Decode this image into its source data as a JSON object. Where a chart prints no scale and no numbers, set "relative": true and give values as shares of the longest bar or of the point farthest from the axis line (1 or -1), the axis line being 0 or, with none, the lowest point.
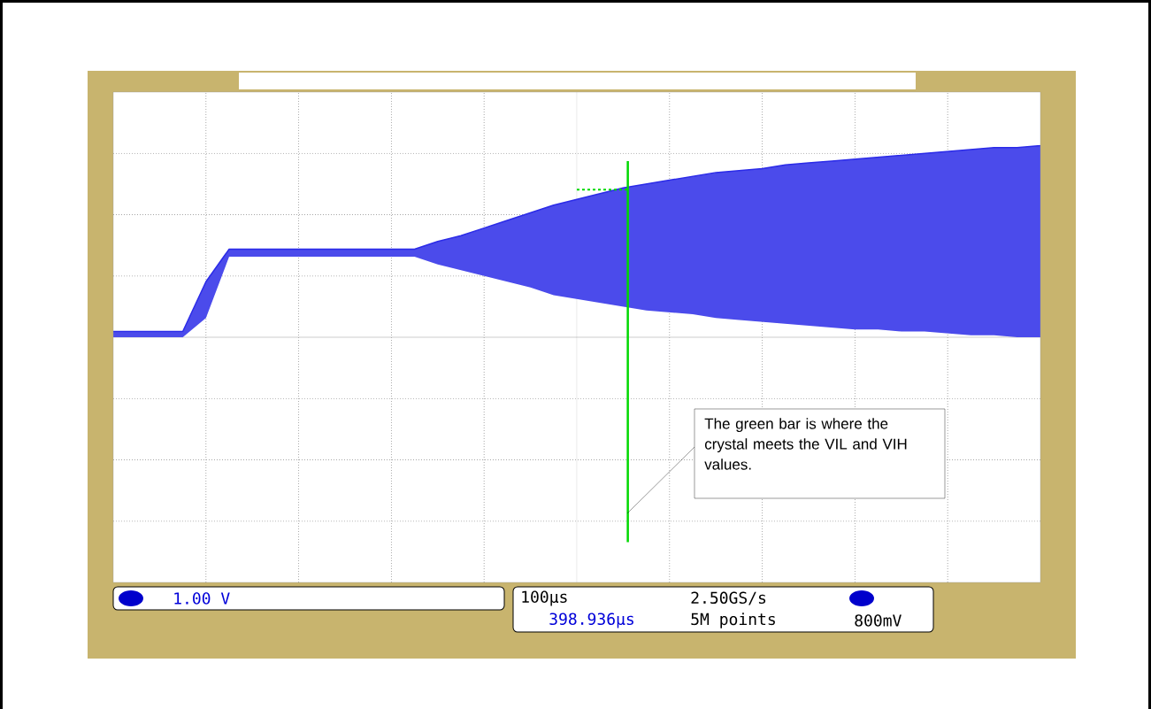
{
  "chart_data": {
    "type": "line",
    "relative": true,
    "grid": true,
    "marker": "none",
    "categories": [
      null,
      null,
      null,
      null,
      null,
      null,
      null,
      null,
      null,
      null,
      null,
      null,
      null,
      null,
      null,
      null,
      null,
      null,
      null,
      null,
      null,
      null,
      null,
      null,
      null,
      null,
      null,
      null,
      null,
      null,
      null,
      null,
      null,
      null,
      null,
      null,
      null,
      null,
      null,
      null,
      null
    ],
    "series": [
      {
        "color": "#2b2be8",
        "values": [
          0.03,
          0.03,
          0.03,
          0.03,
          0.29,
          0.46,
          0.46,
          0.46,
          0.46,
          0.46,
          0.46,
          0.46,
          0.46,
          0.46,
          0.5,
          0.53,
          0.57,
          0.61,
          0.65,
          0.69,
          0.72,
          0.75,
          0.78,
          0.8,
          0.82,
          0.84,
          0.86,
          0.87,
          0.88,
          0.9,
          0.91,
          0.92,
          0.93,
          0.94,
          0.95,
          0.96,
          0.97,
          0.98,
          0.99,
          0.99,
          1
        ],
        "upper": [
          0.03,
          0.03,
          0.03,
          0.03,
          0.29,
          0.46,
          0.46,
          0.46,
          0.46,
          0.46,
          0.46,
          0.46,
          0.46,
          0.46,
          0.5,
          0.53,
          0.57,
          0.61,
          0.65,
          0.69,
          0.72,
          0.75,
          0.78,
          0.8,
          0.82,
          0.84,
          0.86,
          0.87,
          0.88,
          0.9,
          0.91,
          0.92,
          0.93,
          0.94,
          0.95,
          0.96,
          0.97,
          0.98,
          0.99,
          0.99,
          1
        ],
        "lower": [
          0,
          0,
          0,
          0,
          0.1,
          0.42,
          0.42,
          0.42,
          0.42,
          0.42,
          0.42,
          0.42,
          0.42,
          0.42,
          0.38,
          0.35,
          0.32,
          0.29,
          0.26,
          0.22,
          0.2,
          0.18,
          0.16,
          0.14,
          0.13,
          0.12,
          0.1,
          0.09,
          0.08,
          0.07,
          0.06,
          0.05,
          0.04,
          0.04,
          0.03,
          0.03,
          0.02,
          0.01,
          0.01,
          0,
          0
        ]
      }
    ],
    "annotations": [
      "The green bar is where the crystal meets the VIL and VIH values.",
      "1.00 V",
      "100µs",
      "2.50GS/s",
      "398.936µs",
      "5M points",
      "800mV"
    ]
  }
}
